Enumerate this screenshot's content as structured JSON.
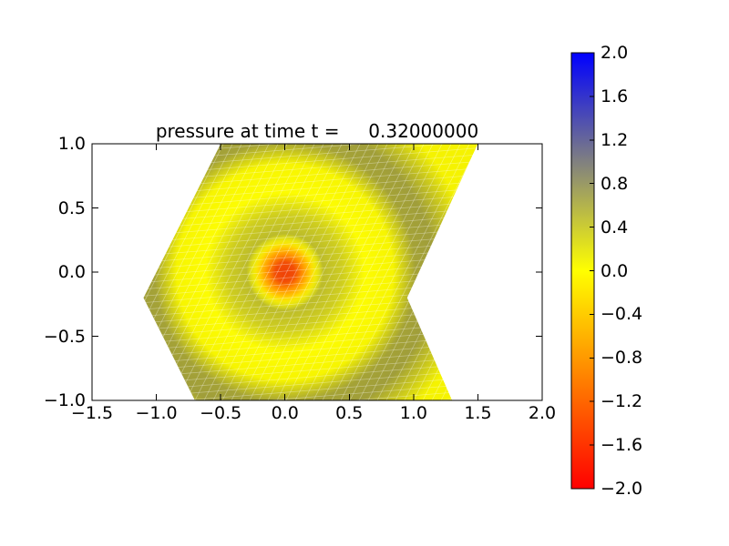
{
  "figure": {
    "background": "#ffffff"
  },
  "chart_data": {
    "type": "heatmap",
    "title": "pressure at time t =     0.32000000",
    "xlabel": "",
    "ylabel": "",
    "grid": false,
    "xlim": [
      -1.5,
      2.0
    ],
    "ylim": [
      -1.0,
      1.0
    ],
    "xtick_values": [
      -1.5,
      -1.0,
      -0.5,
      0.0,
      0.5,
      1.0,
      1.5,
      2.0
    ],
    "xtick_labels": [
      "−1.5",
      "−1.0",
      "−0.5",
      "0.0",
      "0.5",
      "1.0",
      "1.5",
      "2.0"
    ],
    "ytick_values": [
      1.0,
      0.5,
      0.0,
      -0.5,
      -1.0
    ],
    "ytick_labels": [
      "1.0",
      "0.5",
      "0.0",
      "−0.5",
      "−1.0"
    ],
    "colorbar": {
      "vmin": -2.0,
      "vmax": 2.0,
      "tick_values": [
        2.0,
        1.6,
        1.2,
        0.8,
        0.4,
        0.0,
        -0.4,
        -0.8,
        -1.2,
        -1.6,
        -2.0
      ],
      "tick_labels": [
        "2.0",
        "1.6",
        "1.2",
        "0.8",
        "0.4",
        "0.0",
        "−0.4",
        "−0.8",
        "−1.2",
        "−1.6",
        "−2.0"
      ],
      "colormap_stops": [
        {
          "value": 2.0,
          "color": "#0000ff"
        },
        {
          "value": 1.0,
          "color": "#808080"
        },
        {
          "value": 0.0,
          "color": "#ffff00"
        },
        {
          "value": -2.0,
          "color": "#ff0000"
        }
      ]
    },
    "domain_polygon": [
      [
        -0.5,
        1.0
      ],
      [
        1.5,
        1.0
      ],
      [
        0.95,
        -0.2
      ],
      [
        1.3,
        -1.0
      ],
      [
        -0.7,
        -1.0
      ],
      [
        -1.1,
        -0.2
      ]
    ],
    "field": {
      "description": "radial pressure pulse centered at origin on a sheared triangular mesh",
      "center": [
        0.0,
        0.0
      ],
      "background_value": 0.0,
      "center_spot": {
        "peak_value": -1.5,
        "radius": 0.3,
        "core_color": "#ef4107",
        "mid_color": "#ff9000",
        "halo_color": "#ffc602"
      },
      "inner_ring": {
        "value": 0.3,
        "r_peak": 0.3,
        "r_outer": 0.62
      },
      "outer_ring": {
        "value": 0.5,
        "r_inner": 0.9,
        "r_peak": 1.15,
        "r_outer": 1.45
      },
      "base_color": "#f5f300",
      "bright_color": "#ffff02",
      "ring_overlay_rgb": [
        98,
        96,
        100
      ]
    },
    "mesh": {
      "visible": true,
      "line_color": "rgba(255,255,255,0.36)",
      "line_width": 0.75,
      "col_spacing_px": 10,
      "row_spacing_px": 7.4,
      "row_tilt": 0.08,
      "steep_direction_data": [
        0.5,
        1.0
      ]
    }
  }
}
